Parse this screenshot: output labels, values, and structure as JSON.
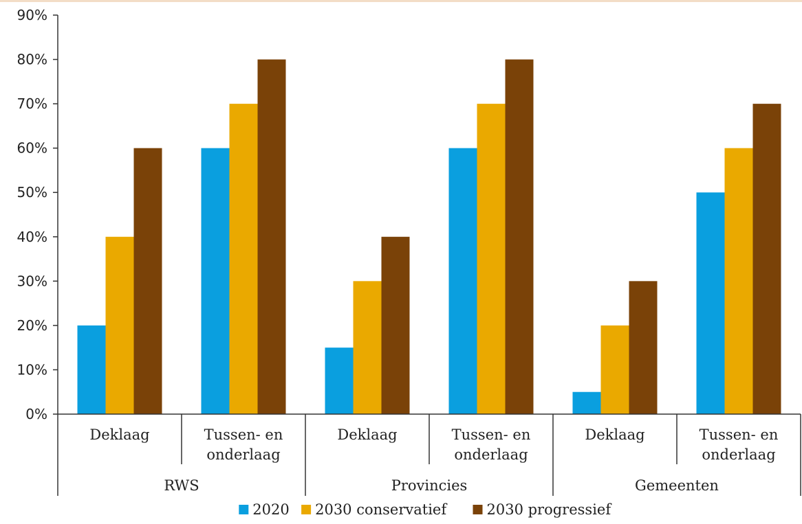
{
  "chart_data": {
    "type": "bar",
    "groups": [
      {
        "label": "RWS",
        "categories": [
          "Deklaag",
          "Tussen- en onderlaag"
        ]
      },
      {
        "label": "Provincies",
        "categories": [
          "Deklaag",
          "Tussen- en onderlaag"
        ]
      },
      {
        "label": "Gemeenten",
        "categories": [
          "Deklaag",
          "Tussen- en onderlaag"
        ]
      }
    ],
    "categories": [
      "Deklaag",
      "Tussen- en onderlaag",
      "Deklaag",
      "Tussen- en onderlaag",
      "Deklaag",
      "Tussen- en onderlaag"
    ],
    "category_lines": [
      [
        "Deklaag"
      ],
      [
        "Tussen- en",
        "onderlaag"
      ],
      [
        "Deklaag"
      ],
      [
        "Tussen- en",
        "onderlaag"
      ],
      [
        "Deklaag"
      ],
      [
        "Tussen- en",
        "onderlaag"
      ]
    ],
    "series": [
      {
        "name": "2020",
        "color": "#0a9fdf",
        "values": [
          20,
          60,
          15,
          60,
          5,
          50
        ]
      },
      {
        "name": "2030 conservatief",
        "color": "#eaa900",
        "values": [
          40,
          70,
          30,
          70,
          20,
          60
        ]
      },
      {
        "name": "2030 progressief",
        "color": "#7a4208",
        "values": [
          60,
          80,
          40,
          80,
          30,
          70
        ]
      }
    ],
    "yticks": [
      "0%",
      "10%",
      "20%",
      "30%",
      "40%",
      "50%",
      "60%",
      "70%",
      "80%",
      "90%"
    ],
    "ylim": [
      0,
      90
    ],
    "legend_position": "bottom",
    "grid": false
  }
}
